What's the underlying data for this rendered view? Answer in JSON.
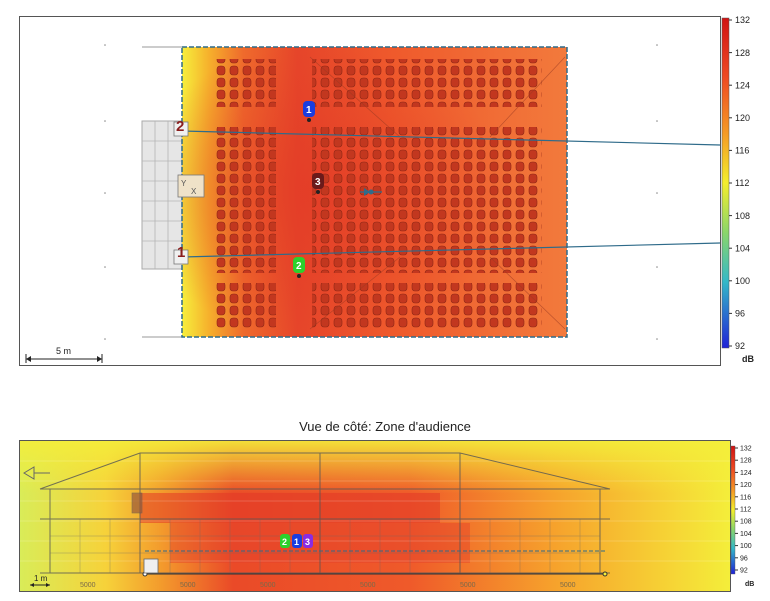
{
  "top_view": {
    "scale_bar_label": "5 m",
    "lines": [
      "1",
      "2"
    ],
    "markers": [
      {
        "label": "1",
        "color": "#1a3de0"
      },
      {
        "label": "2",
        "color": "#2cd12c"
      },
      {
        "label": "3",
        "color": "#6b1a1a"
      }
    ]
  },
  "top_legend": {
    "ticks": [
      "132",
      "128",
      "124",
      "120",
      "116",
      "112",
      "108",
      "104",
      "100",
      "96",
      "92"
    ],
    "unit": "dB"
  },
  "side_view": {
    "title": "Vue de côté: Zone d'audience",
    "scale_bar_label": "1 m",
    "bottom_labels": [
      "5000",
      "5000",
      "5000",
      "5000",
      "5000",
      "5000"
    ],
    "markers": [
      {
        "label": "2",
        "color": "#2cd12c"
      },
      {
        "label": "1",
        "color": "#1a3de0"
      },
      {
        "label": "3",
        "color": "#8a2be2"
      }
    ]
  },
  "side_legend": {
    "ticks": [
      "132",
      "128",
      "124",
      "120",
      "116",
      "112",
      "108",
      "104",
      "100",
      "96",
      "92"
    ],
    "unit": "dB"
  },
  "colors": {
    "hot": "#e8402a",
    "warm": "#f0632d",
    "mid": "#f7a82a",
    "cool": "#f4ee3a",
    "frame": "#2f6b8a"
  }
}
